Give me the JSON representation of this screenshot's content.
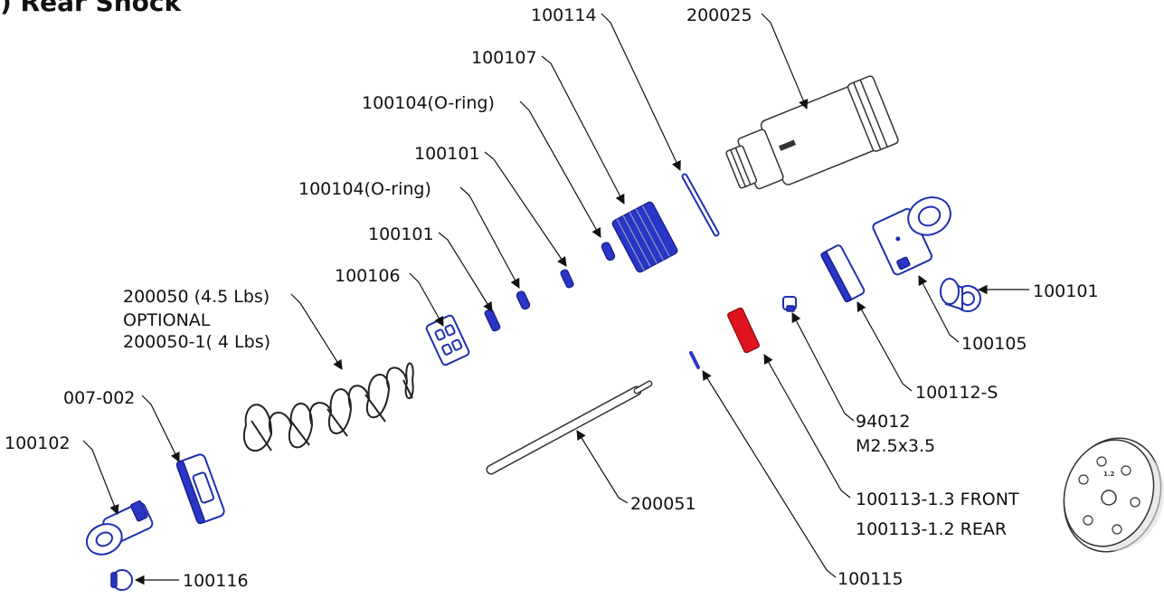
{
  "title": ") Rear Shock",
  "labels": {
    "p100114": "100114",
    "p200025": "200025",
    "p100107": "100107",
    "p100104a": "100104(O-ring)",
    "p100101a": "100101",
    "p100104b": "100104(O-ring)",
    "p100101b": "100101",
    "p100106": "100106",
    "p200050_l1": "200050 (4.5 Lbs)",
    "p200050_l2": "OPTIONAL",
    "p200050_l3": "200050-1( 4 Lbs)",
    "p007002": "007-002",
    "p100102": "100102",
    "p100116": "100116",
    "p200051": "200051",
    "p100115": "100115",
    "p100113_l1": "100113-1.3 FRONT",
    "p100113_l2": "100113-1.2 REAR",
    "p94012_l1": "94012",
    "p94012_l2": "M2.5x3.5",
    "p100112s": "100112-S",
    "p100105": "100105",
    "p100101c": "100101"
  },
  "colors": {
    "part_blue": "#1f2fb0",
    "highlight_red": "#e0141e",
    "line": "#111111"
  }
}
